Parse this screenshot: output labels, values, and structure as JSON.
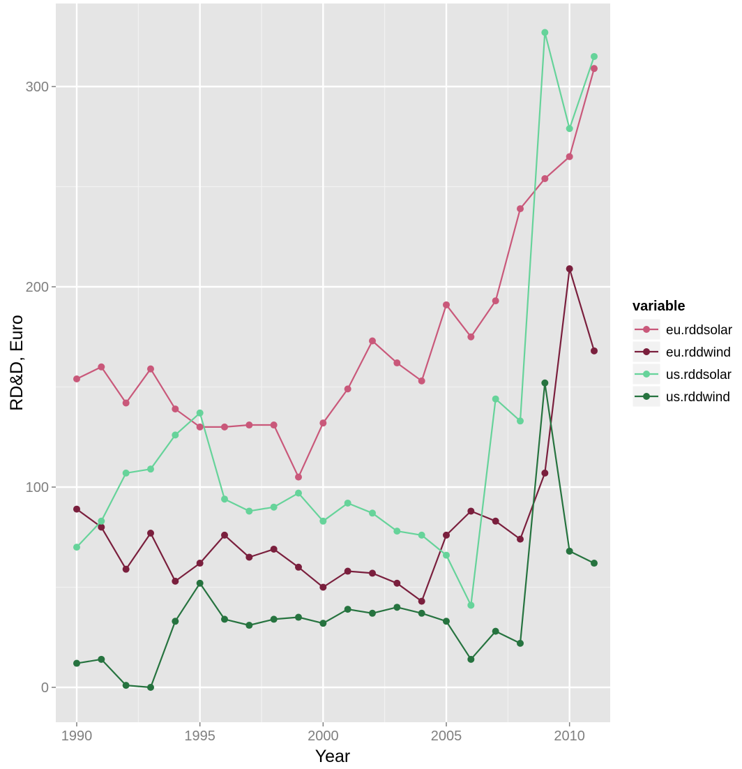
{
  "chart_data": {
    "type": "line",
    "xlabel": "Year",
    "ylabel": "RD&D, Euro",
    "x": [
      1990,
      1991,
      1992,
      1993,
      1994,
      1995,
      1996,
      1997,
      1998,
      1999,
      2000,
      2001,
      2002,
      2003,
      2004,
      2005,
      2006,
      2007,
      2008,
      2009,
      2010,
      2011
    ],
    "xlim": [
      1990,
      2011
    ],
    "ylim": [
      0,
      320
    ],
    "x_ticks": [
      1990,
      1995,
      2000,
      2005,
      2010
    ],
    "y_ticks": [
      0,
      100,
      200,
      300
    ],
    "grid": true,
    "legend": {
      "title": "variable",
      "position": "right"
    },
    "series": [
      {
        "name": "eu.rddsolar",
        "color": "#c9587a",
        "values": [
          154,
          160,
          142,
          159,
          139,
          130,
          130,
          131,
          131,
          105,
          132,
          149,
          173,
          162,
          153,
          191,
          175,
          193,
          239,
          254,
          265,
          309
        ]
      },
      {
        "name": "eu.rddwind",
        "color": "#7a1f3d",
        "values": [
          89,
          80,
          59,
          77,
          53,
          62,
          76,
          65,
          69,
          60,
          50,
          58,
          57,
          52,
          43,
          76,
          88,
          83,
          74,
          107,
          209,
          168
        ]
      },
      {
        "name": "us.rddsolar",
        "color": "#66d39a",
        "values": [
          70,
          83,
          107,
          109,
          126,
          137,
          94,
          88,
          90,
          97,
          83,
          92,
          87,
          78,
          76,
          66,
          41,
          144,
          133,
          327,
          279,
          315
        ]
      },
      {
        "name": "us.rddwind",
        "color": "#26733f",
        "values": [
          12,
          14,
          1,
          0,
          33,
          52,
          34,
          31,
          34,
          35,
          32,
          39,
          37,
          40,
          37,
          33,
          14,
          28,
          22,
          152,
          68,
          62
        ]
      }
    ]
  }
}
